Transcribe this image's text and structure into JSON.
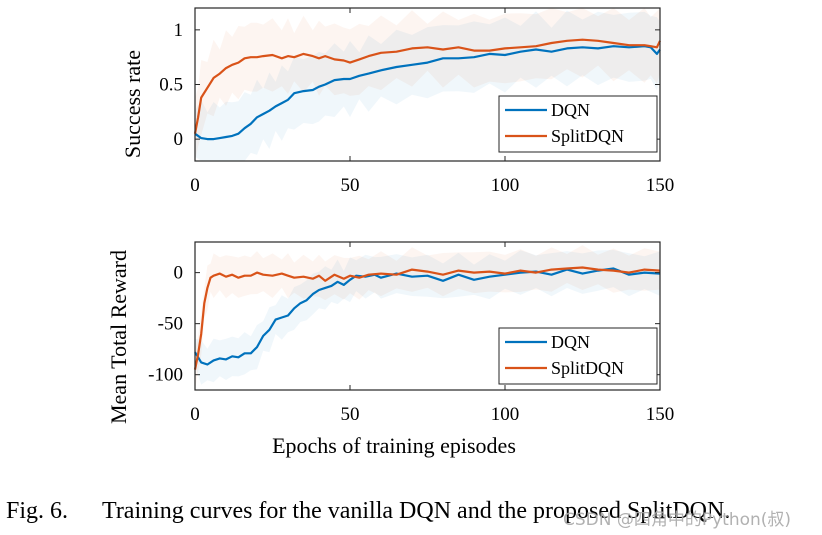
{
  "chart_data": [
    {
      "type": "line",
      "id": "success-rate",
      "title": "",
      "xlabel": "",
      "ylabel": "Success rate",
      "xlim": [
        0,
        150
      ],
      "ylim": [
        -0.2,
        1.2
      ],
      "xticks": [
        0,
        50,
        100,
        150
      ],
      "yticks": [
        0,
        0.5,
        1
      ],
      "xtick_labels": [
        "0",
        "50",
        "100",
        "150"
      ],
      "ytick_labels": [
        "0",
        "0.5",
        "1"
      ],
      "legend": {
        "location": "bottom-right",
        "entries": [
          "DQN",
          "SplitDQN"
        ]
      },
      "series": [
        {
          "name": "DQN",
          "color": "#0072BD",
          "x": [
            0,
            2,
            4,
            6,
            8,
            10,
            12,
            14,
            16,
            18,
            20,
            22,
            24,
            26,
            28,
            30,
            32,
            35,
            38,
            40,
            42,
            45,
            48,
            50,
            53,
            56,
            60,
            65,
            70,
            75,
            80,
            85,
            90,
            95,
            100,
            105,
            110,
            115,
            120,
            125,
            130,
            135,
            140,
            145,
            147,
            149,
            150
          ],
          "y": [
            0.05,
            0.01,
            0.0,
            0.0,
            0.01,
            0.02,
            0.03,
            0.05,
            0.1,
            0.14,
            0.2,
            0.23,
            0.26,
            0.3,
            0.33,
            0.36,
            0.42,
            0.44,
            0.45,
            0.48,
            0.5,
            0.54,
            0.55,
            0.55,
            0.58,
            0.6,
            0.63,
            0.66,
            0.68,
            0.7,
            0.74,
            0.74,
            0.75,
            0.78,
            0.77,
            0.8,
            0.82,
            0.8,
            0.83,
            0.84,
            0.83,
            0.85,
            0.84,
            0.85,
            0.84,
            0.78,
            0.82
          ]
        },
        {
          "name": "SplitDQN",
          "color": "#D95319",
          "x": [
            0,
            1,
            2,
            4,
            6,
            8,
            10,
            12,
            14,
            16,
            18,
            20,
            22,
            25,
            28,
            30,
            32,
            35,
            38,
            40,
            42,
            45,
            48,
            50,
            53,
            56,
            60,
            65,
            70,
            75,
            80,
            85,
            90,
            95,
            100,
            105,
            110,
            115,
            120,
            125,
            130,
            135,
            140,
            145,
            147,
            149,
            150
          ],
          "y": [
            0.05,
            0.2,
            0.38,
            0.47,
            0.56,
            0.6,
            0.65,
            0.68,
            0.7,
            0.74,
            0.75,
            0.75,
            0.76,
            0.77,
            0.74,
            0.76,
            0.75,
            0.78,
            0.76,
            0.74,
            0.76,
            0.73,
            0.72,
            0.7,
            0.73,
            0.76,
            0.79,
            0.8,
            0.83,
            0.84,
            0.82,
            0.84,
            0.81,
            0.81,
            0.83,
            0.84,
            0.85,
            0.88,
            0.9,
            0.91,
            0.9,
            0.88,
            0.86,
            0.86,
            0.85,
            0.84,
            0.9
          ]
        }
      ]
    },
    {
      "type": "line",
      "id": "mean-total-reward",
      "title": "",
      "xlabel": "Epochs of training episodes",
      "ylabel": "Mean Total Reward",
      "xlim": [
        0,
        150
      ],
      "ylim": [
        -115,
        30
      ],
      "xticks": [
        0,
        50,
        100,
        150
      ],
      "yticks": [
        0,
        -50,
        -100
      ],
      "xtick_labels": [
        "0",
        "50",
        "100",
        "150"
      ],
      "ytick_labels": [
        "0",
        "-50",
        "-100"
      ],
      "legend": {
        "location": "bottom-right",
        "entries": [
          "DQN",
          "SplitDQN"
        ]
      },
      "series": [
        {
          "name": "DQN",
          "color": "#0072BD",
          "x": [
            0,
            2,
            4,
            6,
            8,
            10,
            12,
            14,
            16,
            18,
            20,
            22,
            24,
            26,
            28,
            30,
            32,
            34,
            36,
            38,
            40,
            42,
            44,
            46,
            48,
            50,
            52,
            55,
            58,
            60,
            65,
            70,
            75,
            80,
            85,
            90,
            95,
            100,
            105,
            110,
            115,
            120,
            125,
            130,
            135,
            140,
            145,
            150
          ],
          "y": [
            -78,
            -88,
            -90,
            -86,
            -84,
            -85,
            -82,
            -83,
            -79,
            -79,
            -73,
            -62,
            -56,
            -46,
            -44,
            -42,
            -35,
            -30,
            -27,
            -21,
            -17,
            -15,
            -13,
            -9,
            -12,
            -7,
            -3,
            -4,
            -2,
            -5,
            -1,
            -4,
            -3,
            -8,
            -2,
            -7,
            -4,
            -2,
            0,
            1,
            -2,
            3,
            -1,
            2,
            4,
            -2,
            0,
            -1
          ]
        },
        {
          "name": "SplitDQN",
          "color": "#D95319",
          "x": [
            0,
            1,
            2,
            3,
            4,
            5,
            6,
            8,
            10,
            12,
            14,
            16,
            18,
            20,
            22,
            25,
            28,
            30,
            32,
            35,
            38,
            40,
            42,
            45,
            48,
            50,
            53,
            56,
            60,
            65,
            70,
            75,
            80,
            85,
            90,
            95,
            100,
            105,
            110,
            115,
            120,
            125,
            130,
            135,
            140,
            145,
            150
          ],
          "y": [
            -95,
            -80,
            -60,
            -30,
            -15,
            -5,
            -3,
            -1,
            -4,
            -2,
            -5,
            -3,
            -3,
            0,
            -2,
            -3,
            -1,
            -3,
            -5,
            -4,
            -6,
            -3,
            -8,
            -2,
            -6,
            -3,
            -5,
            -2,
            -1,
            -2,
            3,
            1,
            -2,
            2,
            0,
            1,
            -1,
            2,
            0,
            3,
            4,
            5,
            3,
            2,
            0,
            3,
            2
          ]
        }
      ]
    }
  ],
  "caption": {
    "number": "Fig. 6.",
    "text": "Training curves for the vanilla DQN and the proposed SplitDQN."
  },
  "watermark": "CSDN @四角中的Python(叔)"
}
